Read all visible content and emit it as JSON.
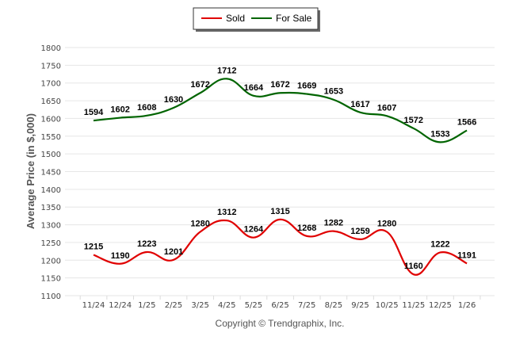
{
  "chart_data": {
    "type": "line",
    "title": "",
    "xlabel": "",
    "ylabel": "Average Price (in $,000)",
    "ylim": [
      1100,
      1800
    ],
    "yticks": [
      1100,
      1150,
      1200,
      1250,
      1300,
      1350,
      1400,
      1450,
      1500,
      1550,
      1600,
      1650,
      1700,
      1750,
      1800
    ],
    "grid": true,
    "legend_position": "top-center",
    "categories": [
      "11/24",
      "12/24",
      "1/25",
      "2/25",
      "3/25",
      "4/25",
      "5/25",
      "6/25",
      "7/25",
      "8/25",
      "9/25",
      "10/25",
      "11/25",
      "12/25",
      "1/26"
    ],
    "series": [
      {
        "name": "Sold",
        "color": "#e00000",
        "values": [
          1215,
          1190,
          1223,
          1201,
          1280,
          1312,
          1264,
          1315,
          1268,
          1282,
          1259,
          1280,
          1160,
          1222,
          1191
        ]
      },
      {
        "name": "For Sale",
        "color": "#006400",
        "values": [
          1594,
          1602,
          1608,
          1630,
          1672,
          1712,
          1664,
          1672,
          1669,
          1653,
          1617,
          1607,
          1572,
          1533,
          1566
        ]
      }
    ],
    "footer": "Copyright © Trendgraphix, Inc."
  }
}
